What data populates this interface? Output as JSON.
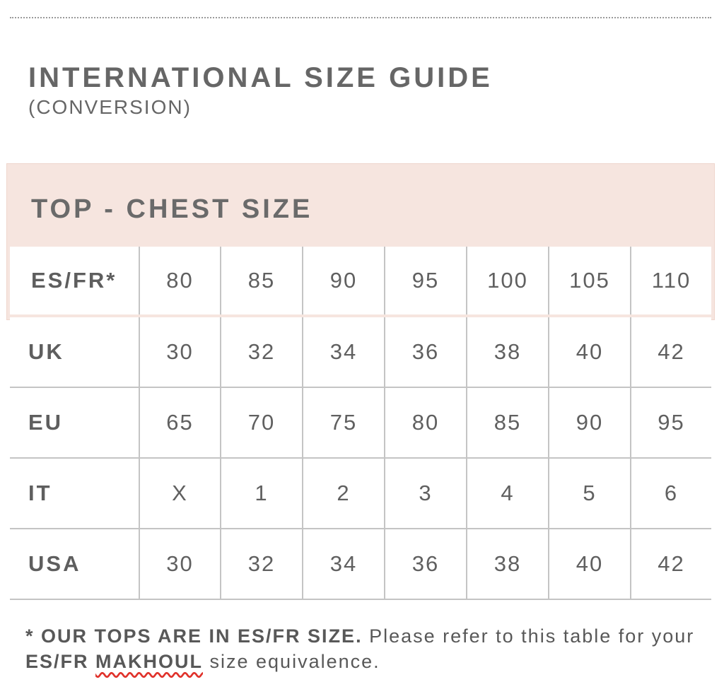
{
  "header": {
    "title": "INTERNATIONAL SIZE GUIDE",
    "subtitle": "(CONVERSION)"
  },
  "section": {
    "title": "TOP - CHEST SIZE"
  },
  "table": {
    "rows": [
      {
        "label": "ES/FR*",
        "values": [
          "80",
          "85",
          "90",
          "95",
          "100",
          "105",
          "110"
        ]
      },
      {
        "label": "UK",
        "values": [
          "30",
          "32",
          "34",
          "36",
          "38",
          "40",
          "42"
        ]
      },
      {
        "label": "EU",
        "values": [
          "65",
          "70",
          "75",
          "80",
          "85",
          "90",
          "95"
        ]
      },
      {
        "label": "IT",
        "values": [
          "X",
          "1",
          "2",
          "3",
          "4",
          "5",
          "6"
        ]
      },
      {
        "label": "USA",
        "values": [
          "30",
          "32",
          "34",
          "36",
          "38",
          "40",
          "42"
        ]
      }
    ]
  },
  "footnote": {
    "bold_lead": "* OUR TOPS ARE IN ES/FR SIZE.",
    "text_1": " Please refer to this table for your ",
    "bold_brand_a": "ES/FR ",
    "bold_brand_b": "MAKHOUL",
    "text_2": " size equivalence."
  },
  "colors": {
    "highlight_band": "#f6e5df",
    "text": "#606060",
    "grid_lines": "#c4c4c4",
    "spellcheck_underline": "#e0322b"
  }
}
